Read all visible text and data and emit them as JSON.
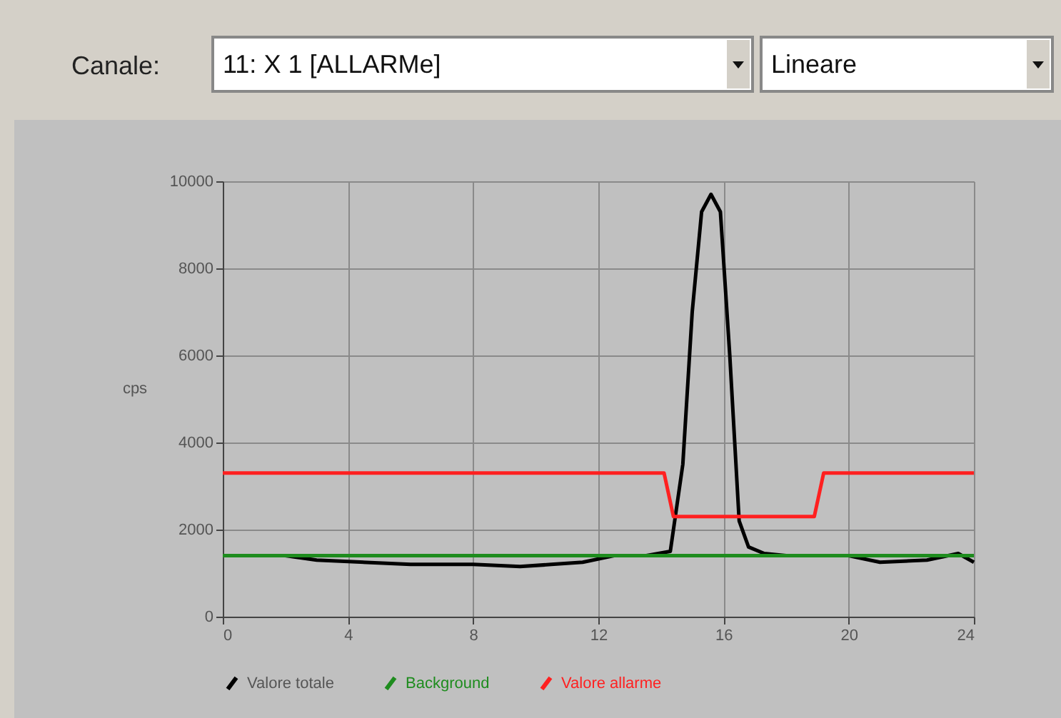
{
  "chart_data": {
    "type": "line",
    "ylabel": "cps",
    "annotations": [
      "Canale:",
      "11: X 1 [ALLARMe]",
      "Lineare"
    ],
    "xlim": [
      0,
      24
    ],
    "xticks": [
      0,
      4,
      8,
      12,
      16,
      20,
      24
    ],
    "ylim": [
      0,
      10000
    ],
    "yticks": [
      0,
      2000,
      4000,
      6000,
      8000,
      10000
    ],
    "grid": true,
    "legend": "bottom",
    "marker": "none",
    "line_style": "solid",
    "series": [
      {
        "name": "Valore totale",
        "color": "#000000",
        "x": [
          0,
          2,
          3,
          6,
          8,
          9.5,
          10.5,
          11.5,
          12.5,
          13.5,
          14.3,
          14.7,
          15,
          15.3,
          15.6,
          15.9,
          16.2,
          16.5,
          16.8,
          17.3,
          18,
          20,
          21,
          22.5,
          23.5,
          24
        ],
        "values": [
          1400,
          1400,
          1300,
          1200,
          1200,
          1150,
          1200,
          1250,
          1400,
          1400,
          1500,
          3500,
          7000,
          9300,
          9700,
          9300,
          6000,
          2200,
          1600,
          1450,
          1400,
          1400,
          1250,
          1300,
          1450,
          1250
        ]
      },
      {
        "name": "Background",
        "color": "#1e8c1e",
        "x": [
          0,
          24
        ],
        "values": [
          1400,
          1400
        ]
      },
      {
        "name": "Valore allarme",
        "color": "#ff2020",
        "x": [
          0,
          14.1,
          14.4,
          18.9,
          19.2,
          24
        ],
        "values": [
          3300,
          3300,
          2300,
          2300,
          3300,
          3300
        ]
      }
    ]
  }
}
